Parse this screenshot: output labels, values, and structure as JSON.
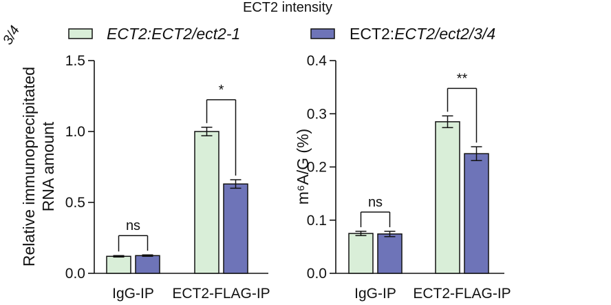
{
  "header": {
    "title": "ECT2 intensity",
    "corner_fragment": "3/4"
  },
  "legend": {
    "items": [
      {
        "label_a": "ECT2:ECT2/ect2-1",
        "label_b": "",
        "color": "#d9eed8",
        "italic_a": true
      },
      {
        "label_a": "ECT2:",
        "label_b": "ECT2/ect2/3/4",
        "color": "#6e74b8",
        "italic_a": false
      }
    ]
  },
  "colors": {
    "series1": "#d9eed8",
    "series2": "#6e74b8",
    "stroke": "#111111"
  },
  "chart_data": [
    {
      "type": "bar",
      "title": "",
      "categories": [
        "IgG-IP",
        "ECT2-FLAG-IP"
      ],
      "ylabel_lines": [
        "Relative immunoprecipitated",
        "RNA amount"
      ],
      "xlabel": "",
      "ylim": [
        0,
        1.5
      ],
      "yticks": [
        0.0,
        0.5,
        1.0,
        1.5
      ],
      "ytick_labels": [
        "0.0",
        "0.5",
        "1.0",
        "1.5"
      ],
      "series": [
        {
          "name": "ECT2:ECT2/ect2-1",
          "values": [
            0.12,
            1.0
          ],
          "errors": [
            0.005,
            0.03
          ]
        },
        {
          "name": "ECT2:ECT2/ect2/3/4",
          "values": [
            0.125,
            0.63
          ],
          "errors": [
            0.005,
            0.03
          ]
        }
      ],
      "significance": [
        "ns",
        "*"
      ]
    },
    {
      "type": "bar",
      "title": "",
      "categories": [
        "IgG-IP",
        "ECT2-FLAG-IP"
      ],
      "ylabel_lines": [
        "m⁶A/G (%)"
      ],
      "xlabel": "",
      "ylim": [
        0,
        0.4
      ],
      "yticks": [
        0.0,
        0.1,
        0.2,
        0.3,
        0.4
      ],
      "ytick_labels": [
        "0.0",
        "0.1",
        "0.2",
        "0.3",
        "0.4"
      ],
      "series": [
        {
          "name": "ECT2:ECT2/ect2-1",
          "values": [
            0.075,
            0.285
          ],
          "errors": [
            0.004,
            0.011
          ]
        },
        {
          "name": "ECT2:ECT2/ect2/3/4",
          "values": [
            0.074,
            0.225
          ],
          "errors": [
            0.005,
            0.013
          ]
        }
      ],
      "significance": [
        "ns",
        "**"
      ]
    }
  ]
}
